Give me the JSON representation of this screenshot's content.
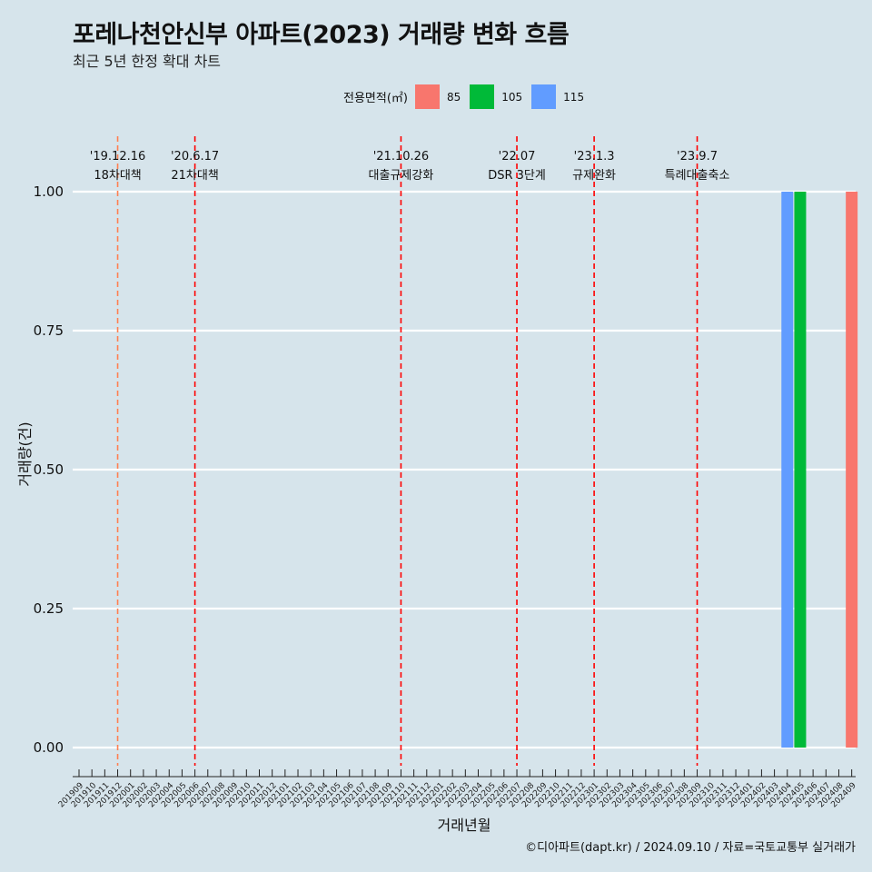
{
  "header": {
    "title": "포레나천안신부 아파트(2023) 거래량 변화 흐름",
    "subtitle": "최근 5년 한정 확대 차트"
  },
  "legend": {
    "title": "전용면적(㎡)",
    "items": [
      {
        "label": "85",
        "color": "#F8766D"
      },
      {
        "label": "105",
        "color": "#00BA38"
      },
      {
        "label": "115",
        "color": "#619CFF"
      }
    ]
  },
  "caption": "©디아파트(dapt.kr) / 2024.09.10 / 자료=국토교통부 실거래가",
  "chart_data": {
    "type": "bar",
    "xlabel": "거래년월",
    "ylabel": "거래량(건)",
    "ylim": [
      0,
      1
    ],
    "yticks": [
      "0.00",
      "0.25",
      "0.50",
      "0.75",
      "1.00"
    ],
    "categories": [
      "201909",
      "201910",
      "201911",
      "201912",
      "202001",
      "202002",
      "202003",
      "202004",
      "202005",
      "202006",
      "202007",
      "202008",
      "202009",
      "202010",
      "202011",
      "202012",
      "202101",
      "202102",
      "202103",
      "202104",
      "202105",
      "202106",
      "202107",
      "202108",
      "202109",
      "202110",
      "202111",
      "202112",
      "202201",
      "202202",
      "202203",
      "202204",
      "202205",
      "202206",
      "202207",
      "202208",
      "202209",
      "202210",
      "202211",
      "202212",
      "202301",
      "202302",
      "202303",
      "202304",
      "202305",
      "202306",
      "202307",
      "202308",
      "202309",
      "202310",
      "202311",
      "202312",
      "202401",
      "202402",
      "202403",
      "202404",
      "202405",
      "202406",
      "202407",
      "202408",
      "202409"
    ],
    "series": [
      {
        "name": "85",
        "color": "#F8766D",
        "points": [
          {
            "x": "202409",
            "y": 1
          }
        ]
      },
      {
        "name": "105",
        "color": "#00BA38",
        "points": [
          {
            "x": "202405",
            "y": 1
          }
        ]
      },
      {
        "name": "115",
        "color": "#619CFF",
        "points": [
          {
            "x": "202404",
            "y": 1
          }
        ]
      }
    ],
    "events": [
      {
        "x": "201912",
        "date": "'19.12.16",
        "label": "18차대책",
        "color": "#ff7f50"
      },
      {
        "x": "202006",
        "date": "'20.6.17",
        "label": "21차대책",
        "color": "#ff0000"
      },
      {
        "x": "202110",
        "date": "'21.10.26",
        "label": "대출규제강화",
        "color": "#ff0000"
      },
      {
        "x": "202207",
        "date": "'22.07",
        "label": "DSR 3단계",
        "color": "#ff0000"
      },
      {
        "x": "202301",
        "date": "'23.1.3",
        "label": "규제완화",
        "color": "#ff0000"
      },
      {
        "x": "202309",
        "date": "'23.9.7",
        "label": "특례대출축소",
        "color": "#ff0000"
      }
    ],
    "grid": true,
    "legend_position": "top"
  }
}
